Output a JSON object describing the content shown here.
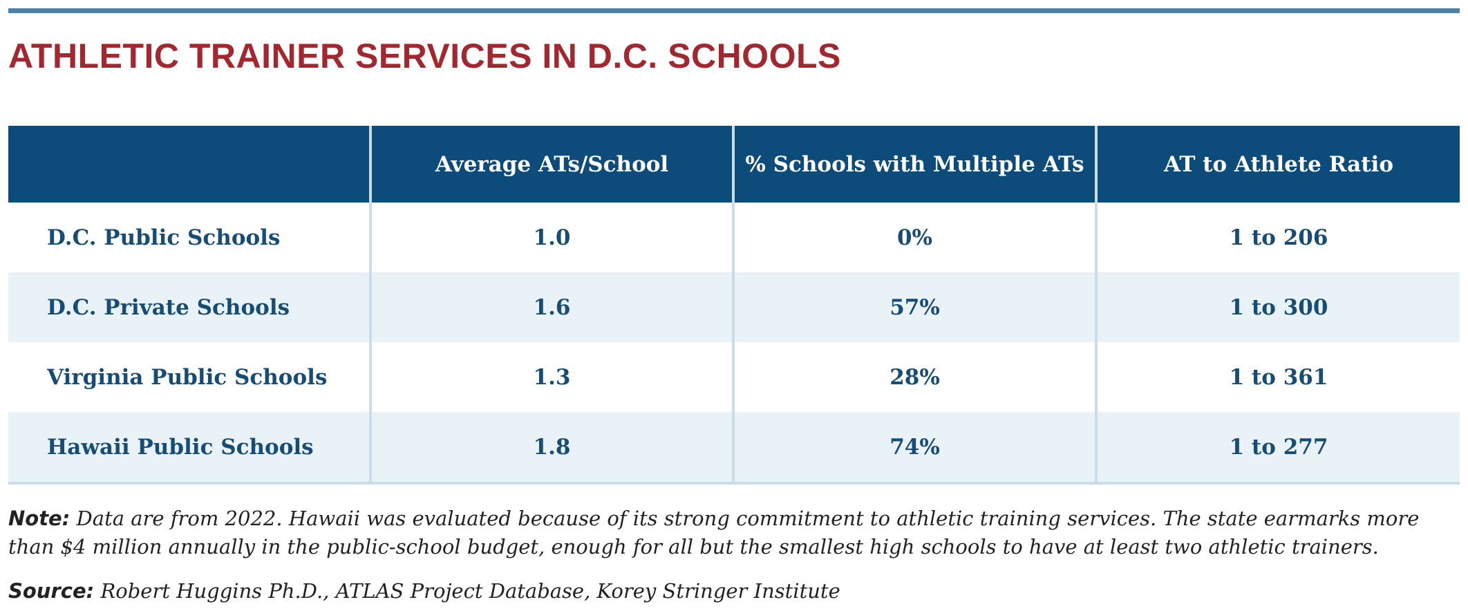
{
  "title": "ATHLETIC TRAINER SERVICES IN D.C. SCHOOLS",
  "colors": {
    "title": "#a3272e",
    "rule": "#4a82ad",
    "header_bg": "#0c4b7a",
    "cell_text": "#174d75",
    "alt_row_bg": "#e9f2f6",
    "divider": "#c9dce8"
  },
  "table": {
    "headers": [
      "",
      "Average ATs/School",
      "% Schools with Multiple ATs",
      "AT to Athlete Ratio"
    ],
    "rows": [
      {
        "label": "D.C. Public Schools",
        "avg": "1.0",
        "multiple": "0%",
        "ratio": "1 to 206"
      },
      {
        "label": "D.C. Private Schools",
        "avg": "1.6",
        "multiple": "57%",
        "ratio": "1 to 300"
      },
      {
        "label": "Virginia Public Schools",
        "avg": "1.3",
        "multiple": "28%",
        "ratio": "1 to 361"
      },
      {
        "label": "Hawaii Public Schools",
        "avg": "1.8",
        "multiple": "74%",
        "ratio": "1 to 277"
      }
    ]
  },
  "note": {
    "label": "Note:",
    "text": "Data are from 2022. Hawaii was evaluated because of its strong commitment to athletic training services. The state earmarks more than $4 million annually in the public-school budget, enough for all but the smallest high schools to have at least two athletic trainers."
  },
  "source": {
    "label": "Source:",
    "text": "Robert Huggins Ph.D., ATLAS Project Database, Korey Stringer Institute"
  }
}
